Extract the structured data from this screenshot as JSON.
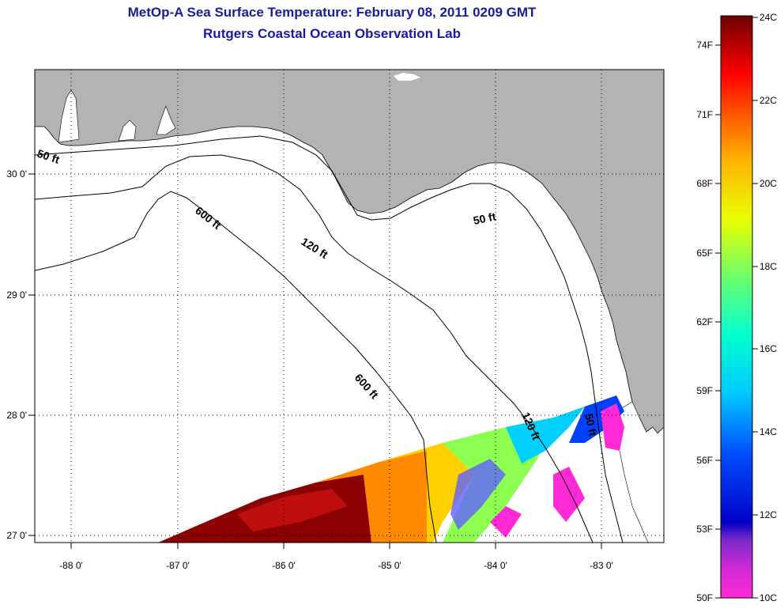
{
  "title": {
    "line1": "MetOp-A Sea Surface Temperature:  February 08, 2011 0209 GMT",
    "line2": "Rutgers Coastal Ocean Observation Lab"
  },
  "map": {
    "longitude_ticks": [
      "-88 0'",
      "-87 0'",
      "-86 0'",
      "-85 0'",
      "-84 0'",
      "-83 0'"
    ],
    "latitude_ticks": [
      "30 0'",
      "29 0'",
      "28 0'",
      "27 0'"
    ],
    "land_color": "#b3b3b3",
    "water_color": "#ffffff",
    "isobath_labels": [
      {
        "text": "50 ft",
        "name": "isobath-label-50ft-west"
      },
      {
        "text": "600 ft",
        "name": "isobath-label-600ft-north"
      },
      {
        "text": "120 ft",
        "name": "isobath-label-120ft-north"
      },
      {
        "text": "50 ft",
        "name": "isobath-label-50ft-east"
      },
      {
        "text": "600 ft",
        "name": "isobath-label-600ft-south"
      },
      {
        "text": "120 ft",
        "name": "isobath-label-120ft-south"
      },
      {
        "text": "50 ft",
        "name": "isobath-label-50ft-south"
      }
    ]
  },
  "colorbar": {
    "fahrenheit_labels": [
      "74F",
      "71F",
      "68F",
      "65F",
      "62F",
      "59F",
      "56F",
      "53F",
      "50F"
    ],
    "celsius_labels": [
      "24C",
      "22C",
      "20C",
      "18C",
      "16C",
      "14C",
      "12C",
      "10C"
    ],
    "colors": [
      "#7a0000",
      "#d40000",
      "#ff2a00",
      "#ff8a00",
      "#ffd000",
      "#f4ff00",
      "#a6ff3c",
      "#3cffb2",
      "#00f0ff",
      "#0096ff",
      "#0028ff",
      "#0000c8",
      "#7a28c8",
      "#ff2ad6"
    ]
  }
}
